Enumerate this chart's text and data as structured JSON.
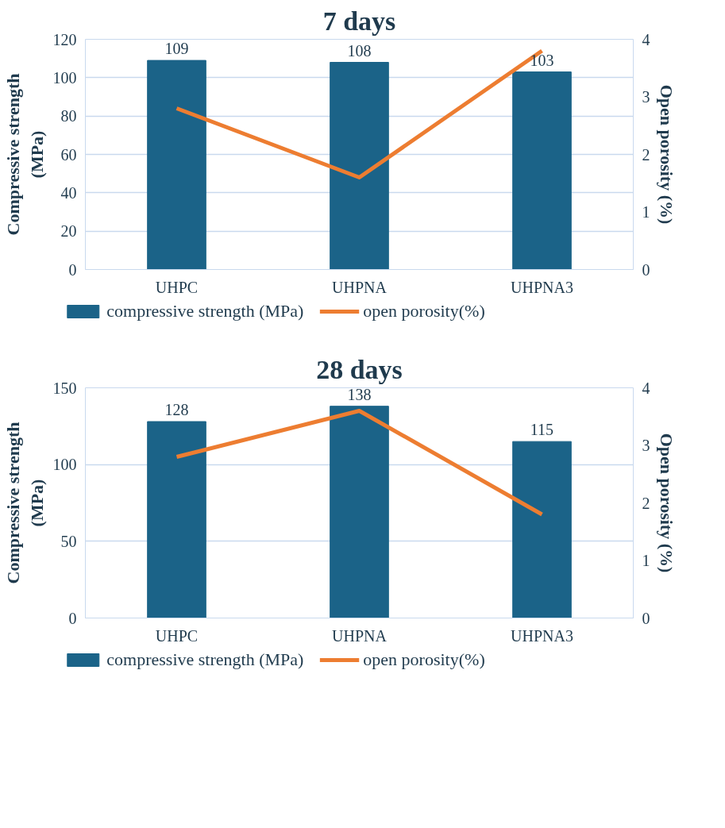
{
  "chart_data": [
    {
      "type": "bar",
      "title": "7 days",
      "categories": [
        "UHPC",
        "UHPNA",
        "UHPNA3"
      ],
      "ylabel": "Compressive strength (MPa)",
      "y2label": "Open porosity (%)",
      "ylim": [
        0,
        120
      ],
      "yticks": [
        0,
        20,
        40,
        60,
        80,
        100,
        120
      ],
      "y2lim": [
        0,
        4
      ],
      "y2ticks": [
        0,
        1,
        2,
        3,
        4
      ],
      "grid": "y",
      "legend": "bottom",
      "series": [
        {
          "name": "compressive strength (MPa)",
          "color": "#1b6388",
          "values": [
            109,
            108,
            103
          ],
          "value_labels": [
            "109",
            "108",
            "103"
          ]
        },
        {
          "name": "open porosity(%)",
          "type": "line",
          "axis": "y2",
          "color": "#ed7d31",
          "values": [
            2.8,
            1.6,
            3.8
          ]
        }
      ]
    },
    {
      "type": "bar",
      "title": "28 days",
      "categories": [
        "UHPC",
        "UHPNA",
        "UHPNA3"
      ],
      "ylabel": "Compressive strength (MPa)",
      "y2label": "Open porosity (%)",
      "ylim": [
        0,
        150
      ],
      "yticks": [
        0,
        50,
        100,
        150
      ],
      "y2lim": [
        0,
        4
      ],
      "y2ticks": [
        0,
        1,
        2,
        3,
        4
      ],
      "grid": "y",
      "legend": "bottom",
      "series": [
        {
          "name": "compressive strength (MPa)",
          "color": "#1b6388",
          "values": [
            128,
            138,
            115
          ],
          "value_labels": [
            "128",
            "138",
            "115"
          ]
        },
        {
          "name": "open porosity(%)",
          "type": "line",
          "axis": "y2",
          "color": "#ed7d31",
          "values": [
            2.8,
            3.6,
            1.8
          ]
        }
      ]
    }
  ]
}
